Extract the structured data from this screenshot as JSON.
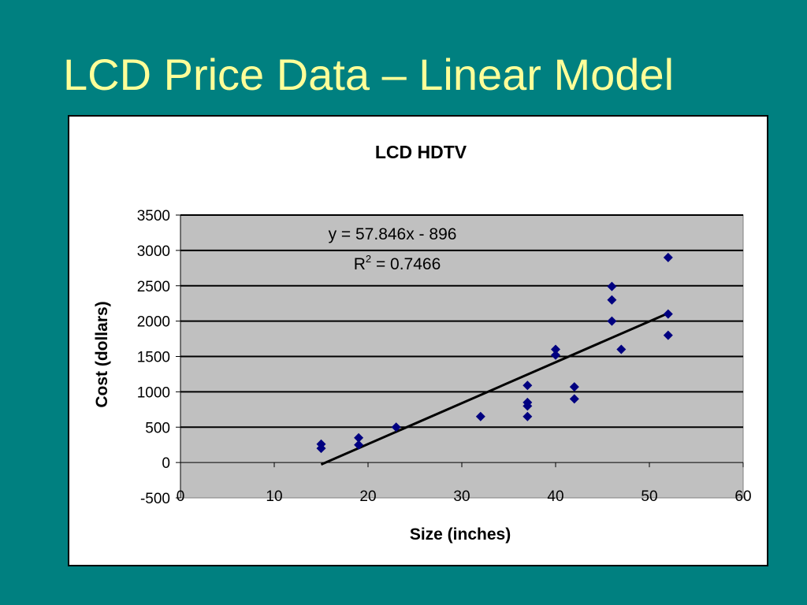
{
  "slide": {
    "title": "LCD Price Data – Linear Model"
  },
  "colors": {
    "background": "#008080",
    "title": "#ffff99",
    "plot_area": "#c0c0c0",
    "marker": "#000080",
    "trendline": "#000000"
  },
  "chart_data": {
    "type": "scatter",
    "title": "LCD HDTV",
    "xlabel": "Size (inches)",
    "ylabel": "Cost (dollars)",
    "xlim": [
      0,
      60
    ],
    "ylim": [
      -500,
      3500
    ],
    "x_ticks": [
      0,
      10,
      20,
      30,
      40,
      50,
      60
    ],
    "y_ticks": [
      -500,
      0,
      500,
      1000,
      1500,
      2000,
      2500,
      3000,
      3500
    ],
    "grid": "horizontal",
    "series": [
      {
        "marker": "diamond",
        "points": [
          [
            15,
            260
          ],
          [
            15,
            200
          ],
          [
            19,
            350
          ],
          [
            19,
            250
          ],
          [
            23,
            500
          ],
          [
            32,
            650
          ],
          [
            37,
            1090
          ],
          [
            37,
            850
          ],
          [
            37,
            800
          ],
          [
            37,
            650
          ],
          [
            40,
            1600
          ],
          [
            40,
            1520
          ],
          [
            42,
            1070
          ],
          [
            42,
            900
          ],
          [
            46,
            2490
          ],
          [
            46,
            2300
          ],
          [
            46,
            2000
          ],
          [
            47,
            1600
          ],
          [
            52,
            2900
          ],
          [
            52,
            2100
          ],
          [
            52,
            1800
          ]
        ]
      }
    ],
    "trendline": {
      "slope": 57.846,
      "intercept": -896,
      "x_range": [
        15,
        52
      ],
      "equation_label": "y = 57.846x - 896",
      "r2_prefix": "R",
      "r2_sup": "2",
      "r2_value": " = 0.7466"
    }
  }
}
